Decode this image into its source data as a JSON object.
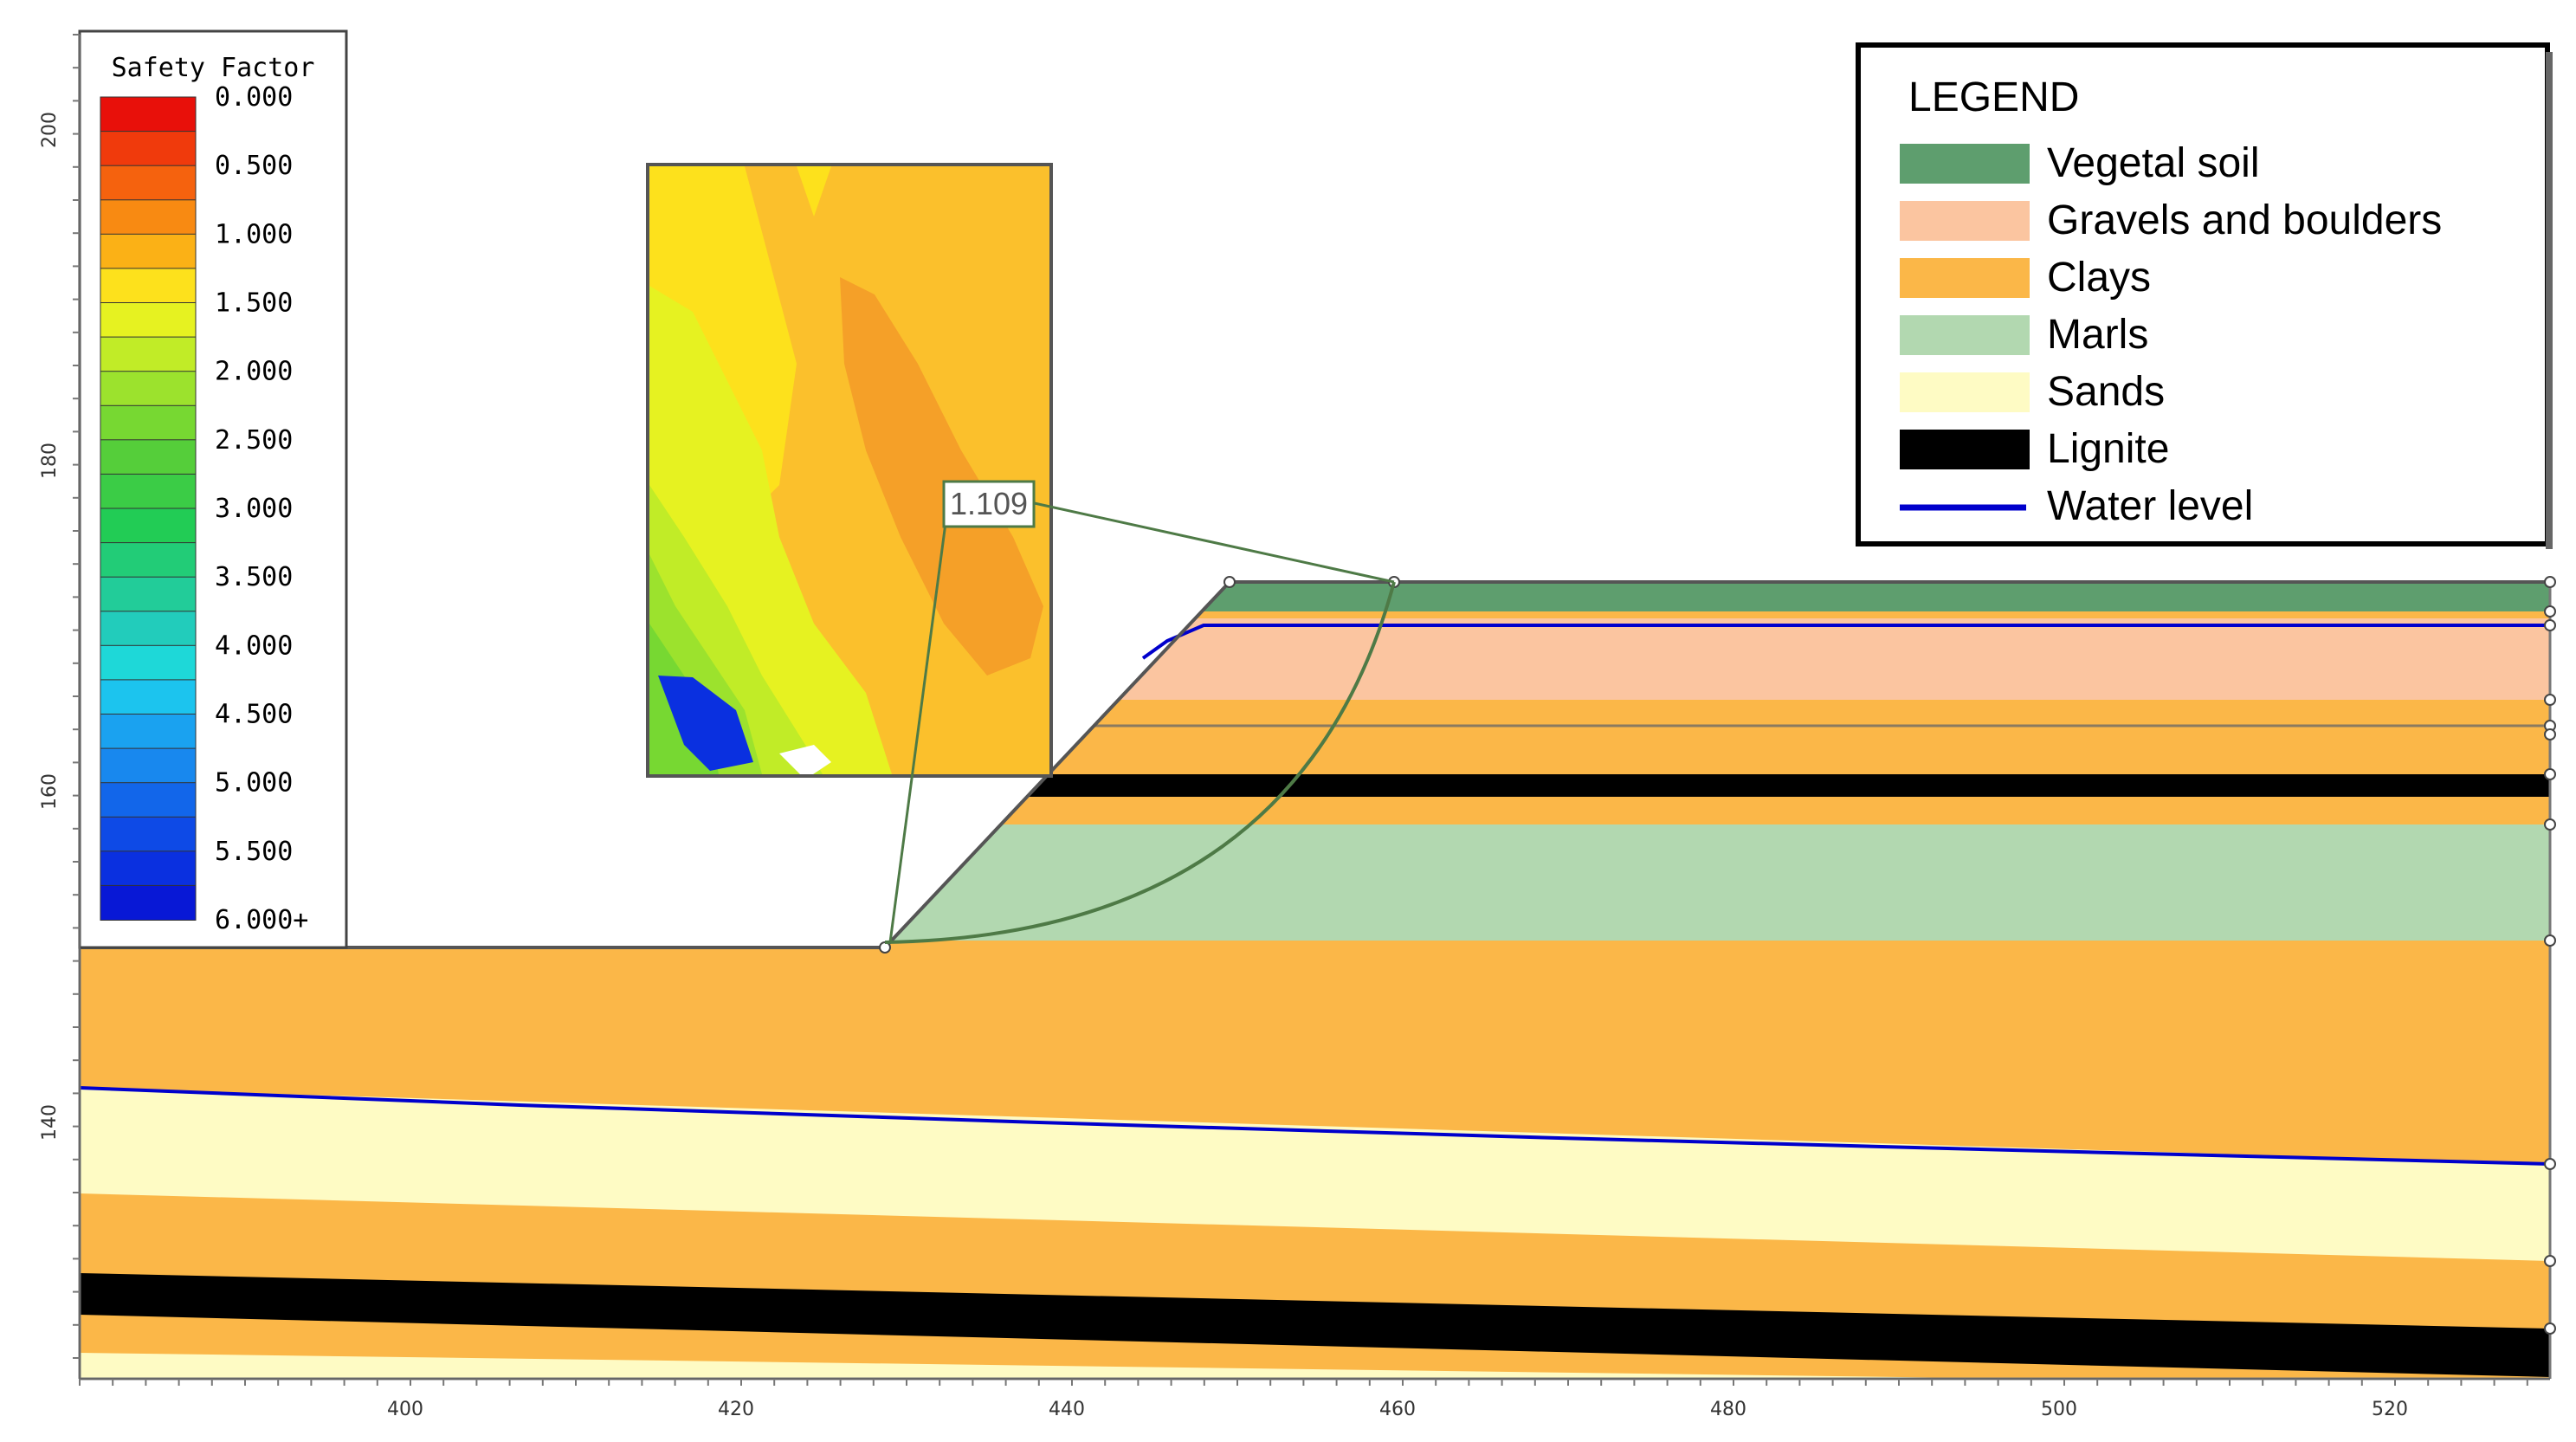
{
  "safety_factor": {
    "title": "Safety Factor",
    "ticks": [
      "0.000",
      "0.500",
      "1.000",
      "1.500",
      "2.000",
      "2.500",
      "3.000",
      "3.500",
      "4.000",
      "4.500",
      "5.000",
      "5.500",
      "6.000+"
    ],
    "colors": [
      "#e8100a",
      "#f03a0c",
      "#f5620e",
      "#f88a12",
      "#fbb116",
      "#fde11c",
      "#e6f221",
      "#c1ec27",
      "#9ce22d",
      "#77d832",
      "#55ce3a",
      "#3bcc46",
      "#22cc55",
      "#22cc77",
      "#22cc99",
      "#22ccbb",
      "#1ed8d8",
      "#1cc4ee",
      "#1aa2f0",
      "#1888ee",
      "#1266ea",
      "#0e4ae6",
      "#0a30e0",
      "#0818d6"
    ]
  },
  "legend": {
    "title": "LEGEND",
    "items": [
      {
        "label": "Vegetal soil",
        "color": "#5e9e6e",
        "kind": "fill"
      },
      {
        "label": "Gravels and boulders",
        "color": "#fbc5a0",
        "kind": "fill"
      },
      {
        "label": "Clays",
        "color": "#fbb748",
        "kind": "fill"
      },
      {
        "label": "Marls",
        "color": "#b2d8b0",
        "kind": "fill"
      },
      {
        "label": "Sands",
        "color": "#fefbc4",
        "kind": "fill"
      },
      {
        "label": "Lignite",
        "color": "#000000",
        "kind": "fill"
      },
      {
        "label": "Water level",
        "color": "#0000cc",
        "kind": "line"
      }
    ]
  },
  "callout": {
    "value": "1.109"
  },
  "axes": {
    "x_ticks": [
      "400",
      "420",
      "440",
      "460",
      "480",
      "500",
      "520"
    ],
    "y_ticks": [
      "200",
      "180",
      "160",
      "140"
    ]
  }
}
